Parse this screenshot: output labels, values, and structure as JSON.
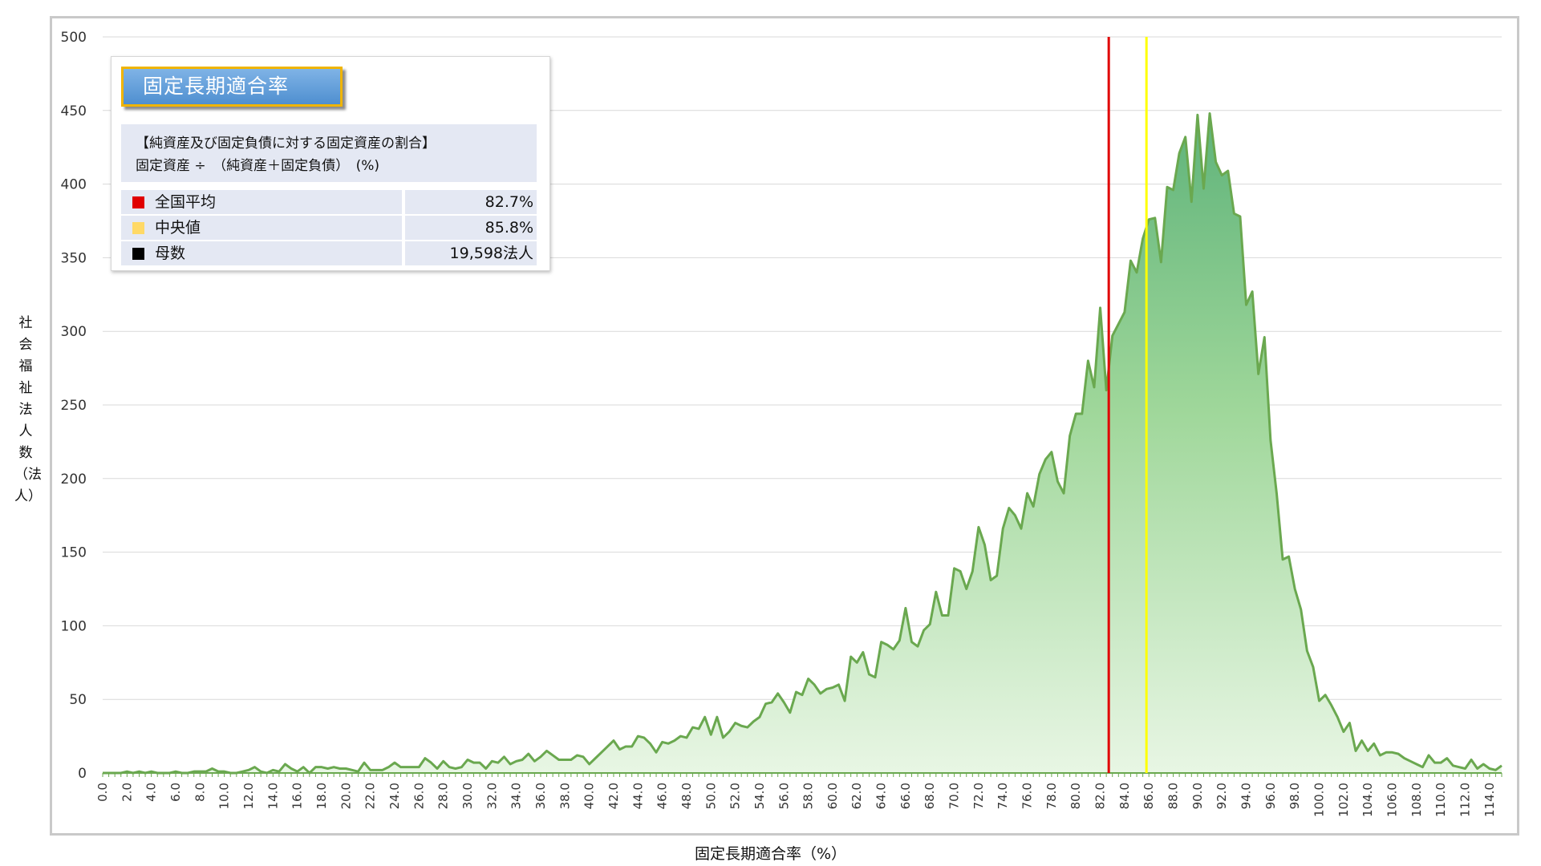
{
  "chart_data": {
    "type": "area",
    "xlabel": "固定長期適合率（%）",
    "ylabel": "社会福祉法人数（法人）",
    "ylim": [
      0,
      500
    ],
    "yticks": [
      0,
      50,
      100,
      150,
      200,
      250,
      300,
      350,
      400,
      450,
      500
    ],
    "xlim": [
      0,
      115
    ],
    "xticks": [
      0,
      2,
      4,
      6,
      8,
      10,
      12,
      14,
      16,
      18,
      20,
      22,
      24,
      26,
      28,
      30,
      32,
      34,
      36,
      38,
      40,
      42,
      44,
      46,
      48,
      50,
      52,
      54,
      56,
      58,
      60,
      62,
      64,
      66,
      68,
      70,
      72,
      74,
      76,
      78,
      80,
      82,
      84,
      86,
      88,
      90,
      92,
      94,
      96,
      98,
      100,
      102,
      104,
      106,
      108,
      110,
      112,
      114
    ],
    "grid": true,
    "x": [
      0,
      0.5,
      1,
      1.5,
      2,
      2.5,
      3,
      3.5,
      4,
      4.5,
      5,
      5.5,
      6,
      6.5,
      7,
      7.5,
      8,
      8.5,
      9,
      9.5,
      10,
      10.5,
      11,
      11.5,
      12,
      12.5,
      13,
      13.5,
      14,
      14.5,
      15,
      15.5,
      16,
      16.5,
      17,
      17.5,
      18,
      18.5,
      19,
      19.5,
      20,
      20.5,
      21,
      21.5,
      22,
      22.5,
      23,
      23.5,
      24,
      24.5,
      25,
      25.5,
      26,
      26.5,
      27,
      27.5,
      28,
      28.5,
      29,
      29.5,
      30,
      30.5,
      31,
      31.5,
      32,
      32.5,
      33,
      33.5,
      34,
      34.5,
      35,
      35.5,
      36,
      36.5,
      37,
      37.5,
      38,
      38.5,
      39,
      39.5,
      40,
      40.5,
      41,
      41.5,
      42,
      42.5,
      43,
      43.5,
      44,
      44.5,
      45,
      45.5,
      46,
      46.5,
      47,
      47.5,
      48,
      48.5,
      49,
      49.5,
      50,
      50.5,
      51,
      51.5,
      52,
      52.5,
      53,
      53.5,
      54,
      54.5,
      55,
      55.5,
      56,
      56.5,
      57,
      57.5,
      58,
      58.5,
      59,
      59.5,
      60,
      60.5,
      61,
      61.5,
      62,
      62.5,
      63,
      63.5,
      64,
      64.5,
      65,
      65.5,
      66,
      66.5,
      67,
      67.5,
      68,
      68.5,
      69,
      69.5,
      70,
      70.5,
      71,
      71.5,
      72,
      72.5,
      73,
      73.5,
      74,
      74.5,
      75,
      75.5,
      76,
      76.5,
      77,
      77.5,
      78,
      78.5,
      79,
      79.5,
      80,
      80.5,
      81,
      81.5,
      82,
      82.5,
      83,
      83.5,
      84,
      84.5,
      85,
      85.5,
      86,
      86.5,
      87,
      87.5,
      88,
      88.5,
      89,
      89.5,
      90,
      90.5,
      91,
      91.5,
      92,
      92.5,
      93,
      93.5,
      94,
      94.5,
      95,
      95.5,
      96,
      96.5,
      97,
      97.5,
      98,
      98.5,
      99,
      99.5,
      100,
      100.5,
      101,
      101.5,
      102,
      102.5,
      103,
      103.5,
      104,
      104.5,
      105,
      105.5,
      106,
      106.5,
      107,
      107.5,
      108,
      108.5,
      109,
      109.5,
      110,
      110.5,
      111,
      111.5,
      112,
      112.5,
      113,
      113.5,
      114,
      114.5,
      115
    ],
    "values": [
      0,
      0,
      0,
      0,
      1,
      0,
      1,
      0,
      1,
      0,
      0,
      0,
      1,
      0,
      0,
      1,
      1,
      1,
      3,
      1,
      1,
      0,
      0,
      1,
      2,
      4,
      1,
      0,
      2,
      1,
      6,
      3,
      1,
      4,
      0,
      4,
      4,
      3,
      4,
      3,
      3,
      2,
      1,
      7,
      2,
      2,
      2,
      4,
      7,
      4,
      4,
      4,
      4,
      10,
      7,
      3,
      8,
      4,
      3,
      4,
      9,
      7,
      7,
      3,
      8,
      7,
      11,
      6,
      8,
      9,
      13,
      8,
      11,
      15,
      12,
      9,
      9,
      9,
      12,
      11,
      6,
      10,
      14,
      18,
      22,
      16,
      18,
      18,
      25,
      24,
      20,
      14,
      21,
      20,
      22,
      25,
      24,
      31,
      30,
      38,
      26,
      38,
      24,
      28,
      34,
      32,
      31,
      35,
      38,
      47,
      48,
      54,
      48,
      41,
      55,
      53,
      64,
      60,
      54,
      57,
      58,
      60,
      49,
      79,
      75,
      82,
      67,
      65,
      89,
      87,
      84,
      90,
      112,
      89,
      86,
      97,
      101,
      123,
      107,
      107,
      139,
      137,
      125,
      137,
      167,
      155,
      131,
      134,
      166,
      180,
      175,
      166,
      190,
      181,
      203,
      213,
      218,
      198,
      190,
      229,
      244,
      244,
      280,
      262,
      316,
      260,
      297,
      305,
      313,
      348,
      340,
      363,
      376,
      377,
      347,
      398,
      396,
      421,
      432,
      388,
      447,
      397,
      448,
      415,
      406,
      409,
      380,
      378,
      318,
      327,
      271,
      296,
      226,
      190,
      145,
      147,
      125,
      111,
      83,
      72,
      49,
      53,
      46,
      38,
      28,
      34,
      15,
      22,
      15,
      20,
      12,
      14,
      14,
      13,
      10,
      8,
      6,
      4,
      12,
      7,
      7,
      10,
      5,
      4,
      3,
      9,
      3,
      6,
      3,
      2,
      5
    ],
    "vlines": [
      {
        "name": "全国平均",
        "x": 82.7,
        "color": "#e00000"
      },
      {
        "name": "中央値",
        "x": 85.8,
        "color": "#ffff00"
      }
    ],
    "colors": {
      "line": "#6aa84f",
      "fill_top": "#5fb37a",
      "fill_bottom": "#e8f6e4",
      "grid": "#d9d9d9"
    }
  },
  "info": {
    "title": "固定長期適合率",
    "desc_line1": "【純資産及び固定負債に対する固定資産の割合】",
    "desc_line2": "固定資産 ÷　（純資産＋固定負債）　(%)",
    "stats": [
      {
        "label": "全国平均",
        "value": "82.7%",
        "color": "#e00000"
      },
      {
        "label": "中央値",
        "value": "85.8%",
        "color": "#ffd966"
      },
      {
        "label": "母数",
        "value": "19,598法人",
        "color": "#000000"
      }
    ]
  }
}
